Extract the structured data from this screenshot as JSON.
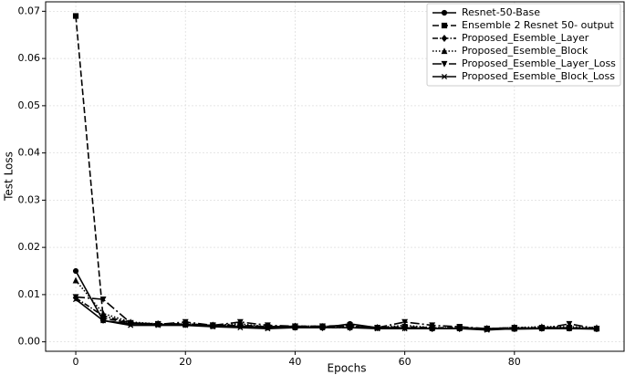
{
  "chart_data": {
    "type": "line",
    "x_label": "Epochs",
    "y_label": "Test Loss",
    "x": [
      0,
      5,
      10,
      15,
      20,
      25,
      30,
      35,
      40,
      45,
      50,
      55,
      60,
      65,
      70,
      75,
      80,
      85,
      90,
      95
    ],
    "xlim": [
      -5.5,
      100
    ],
    "xticks": [
      0,
      20,
      40,
      60,
      80
    ],
    "ylim": [
      -0.002,
      0.072
    ],
    "yticks": [
      {
        "value": 0,
        "label": "0.00"
      },
      0.01,
      0.02,
      0.03,
      0.04,
      0.05,
      0.06,
      0.07
    ],
    "grid": true,
    "legend": "upper right",
    "series": [
      {
        "name": "Resnet-50-Base",
        "color": "#000000",
        "linestyle": "solid",
        "marker": "o",
        "values": [
          0.015,
          0.0045,
          0.0038,
          0.0037,
          0.0036,
          0.0033,
          0.0033,
          0.003,
          0.003,
          0.003,
          0.0038,
          0.003,
          0.003,
          0.0028,
          0.0028,
          0.0027,
          0.0027,
          0.0028,
          0.0028,
          0.0027
        ]
      },
      {
        "name": "Ensemble 2 Resnet 50- output",
        "color": "#000000",
        "linestyle": "dashed",
        "marker": "s",
        "values": [
          0.069,
          0.005,
          0.004,
          0.0038,
          0.0038,
          0.0035,
          0.0035,
          0.0032,
          0.0033,
          0.0033,
          0.0033,
          0.003,
          0.0032,
          0.003,
          0.003,
          0.0028,
          0.0028,
          0.003,
          0.003,
          0.0028
        ]
      },
      {
        "name": "Proposed_Esemble_Layer",
        "color": "#000000",
        "linestyle": "dashdot",
        "marker": "D",
        "values": [
          0.0093,
          0.0055,
          0.004,
          0.0038,
          0.0037,
          0.0035,
          0.0035,
          0.0032,
          0.0033,
          0.003,
          0.003,
          0.003,
          0.003,
          0.0028,
          0.0028,
          0.0028,
          0.003,
          0.003,
          0.003,
          0.0028
        ]
      },
      {
        "name": "Proposed_Esemble_Block",
        "color": "#000000",
        "linestyle": "dotted",
        "marker": "^",
        "values": [
          0.013,
          0.006,
          0.0042,
          0.0038,
          0.0038,
          0.0035,
          0.0038,
          0.0032,
          0.0033,
          0.0033,
          0.0033,
          0.003,
          0.0035,
          0.003,
          0.003,
          0.0028,
          0.003,
          0.0032,
          0.0032,
          0.003
        ]
      },
      {
        "name": "Proposed_Esemble_Layer_Loss",
        "color": "#000000",
        "linestyle": "longdashdot",
        "marker": "v",
        "values": [
          0.0095,
          0.009,
          0.004,
          0.0037,
          0.0042,
          0.0035,
          0.0042,
          0.0035,
          0.0033,
          0.0033,
          0.0035,
          0.003,
          0.0042,
          0.0035,
          0.0032,
          0.0028,
          0.003,
          0.0028,
          0.0038,
          0.0028
        ]
      },
      {
        "name": "Proposed_Esemble_Block_Loss",
        "color": "#000000",
        "linestyle": "solid",
        "marker": "x",
        "values": [
          0.009,
          0.0045,
          0.0035,
          0.0035,
          0.0035,
          0.0032,
          0.003,
          0.0028,
          0.003,
          0.003,
          0.003,
          0.0028,
          0.0028,
          0.0028,
          0.0028,
          0.0025,
          0.0028,
          0.0028,
          0.0028,
          0.0028
        ]
      }
    ]
  }
}
